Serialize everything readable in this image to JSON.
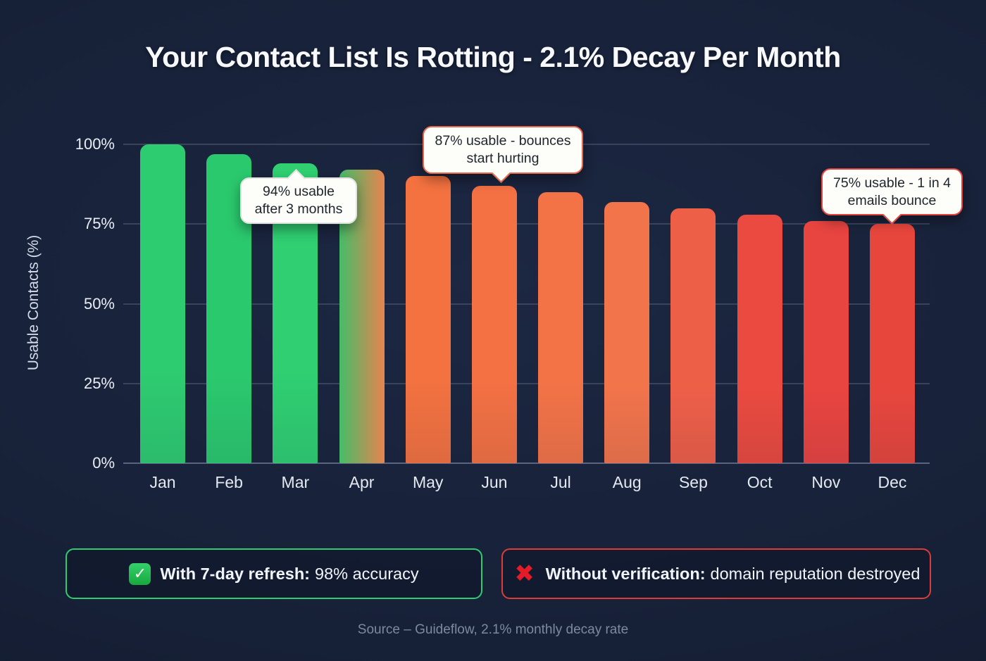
{
  "title": "Your Contact List Is Rotting - 2.1% Decay Per Month",
  "chart_data": {
    "type": "bar",
    "title": "Your Contact List Is Rotting - 2.1% Decay Per Month",
    "xlabel": "",
    "ylabel": "Usable Contacts (%)",
    "ylim": [
      0,
      100
    ],
    "grid": "horizontal",
    "legend": "none",
    "categories": [
      "Jan",
      "Feb",
      "Mar",
      "Apr",
      "May",
      "Jun",
      "Jul",
      "Aug",
      "Sep",
      "Oct",
      "Nov",
      "Dec"
    ],
    "values": [
      100,
      97,
      94,
      92,
      90,
      87,
      85,
      82,
      80,
      78,
      76,
      75
    ],
    "yticks": [
      {
        "label": "100%",
        "value": 100
      },
      {
        "label": "75%",
        "value": 75
      },
      {
        "label": "50%",
        "value": 50
      },
      {
        "label": "25%",
        "value": 25
      },
      {
        "label": "0%",
        "value": 0
      }
    ],
    "bar_colors": [
      "#2ecc71",
      "#2bc96e",
      "#2fcf72",
      [
        "#45bd68",
        "#e8834f"
      ],
      "#f47240",
      "#f47143",
      "#f37347",
      "#f2744b",
      "#ee5f48",
      "#ea4a3f",
      "#e84440",
      "#e7463d"
    ],
    "annotations": [
      {
        "text": "94% usable after 3 months",
        "target": "Mar",
        "pointer": "top"
      },
      {
        "text": "87% usable - bounces start hurting",
        "target": "Jun",
        "pointer": "bottom"
      },
      {
        "text": "75% usable - 1 in 4 emails bounce",
        "target": "Dec",
        "pointer": "bottom"
      }
    ]
  },
  "callouts": [
    {
      "line1": "94% usable",
      "line2": "after 3 months",
      "border_color": "#e0e4e0"
    },
    {
      "line1": "87% usable - bounces",
      "line2": "start hurting",
      "border_color": "#e8684b"
    },
    {
      "line1": "75% usable - 1 in 4",
      "line2": "emails bounce",
      "border_color": "#e2453e"
    }
  ],
  "badges": {
    "positive": {
      "icon": "check-badge",
      "icon_glyph": "✓",
      "bold_label": "With 7-day refresh:",
      "text": "98% accuracy",
      "border_color": "#2ecc71"
    },
    "negative": {
      "icon": "cross-mark",
      "icon_glyph": "✖",
      "bold_label": "Without verification:",
      "text": "domain reputation destroyed",
      "border_color": "#dd3c38"
    }
  },
  "source": "Source – Guideflow, 2.1% monthly decay rate",
  "colors": {
    "background": "#172138",
    "gridline": "#39445c",
    "axis_line": "#596480",
    "green": "#2ecc71",
    "orange": "#f47240",
    "red": "#e7463d",
    "callout_bg": "#fdfdf9",
    "text_light": "#f1f4f8",
    "source_text": "#7e899e"
  }
}
